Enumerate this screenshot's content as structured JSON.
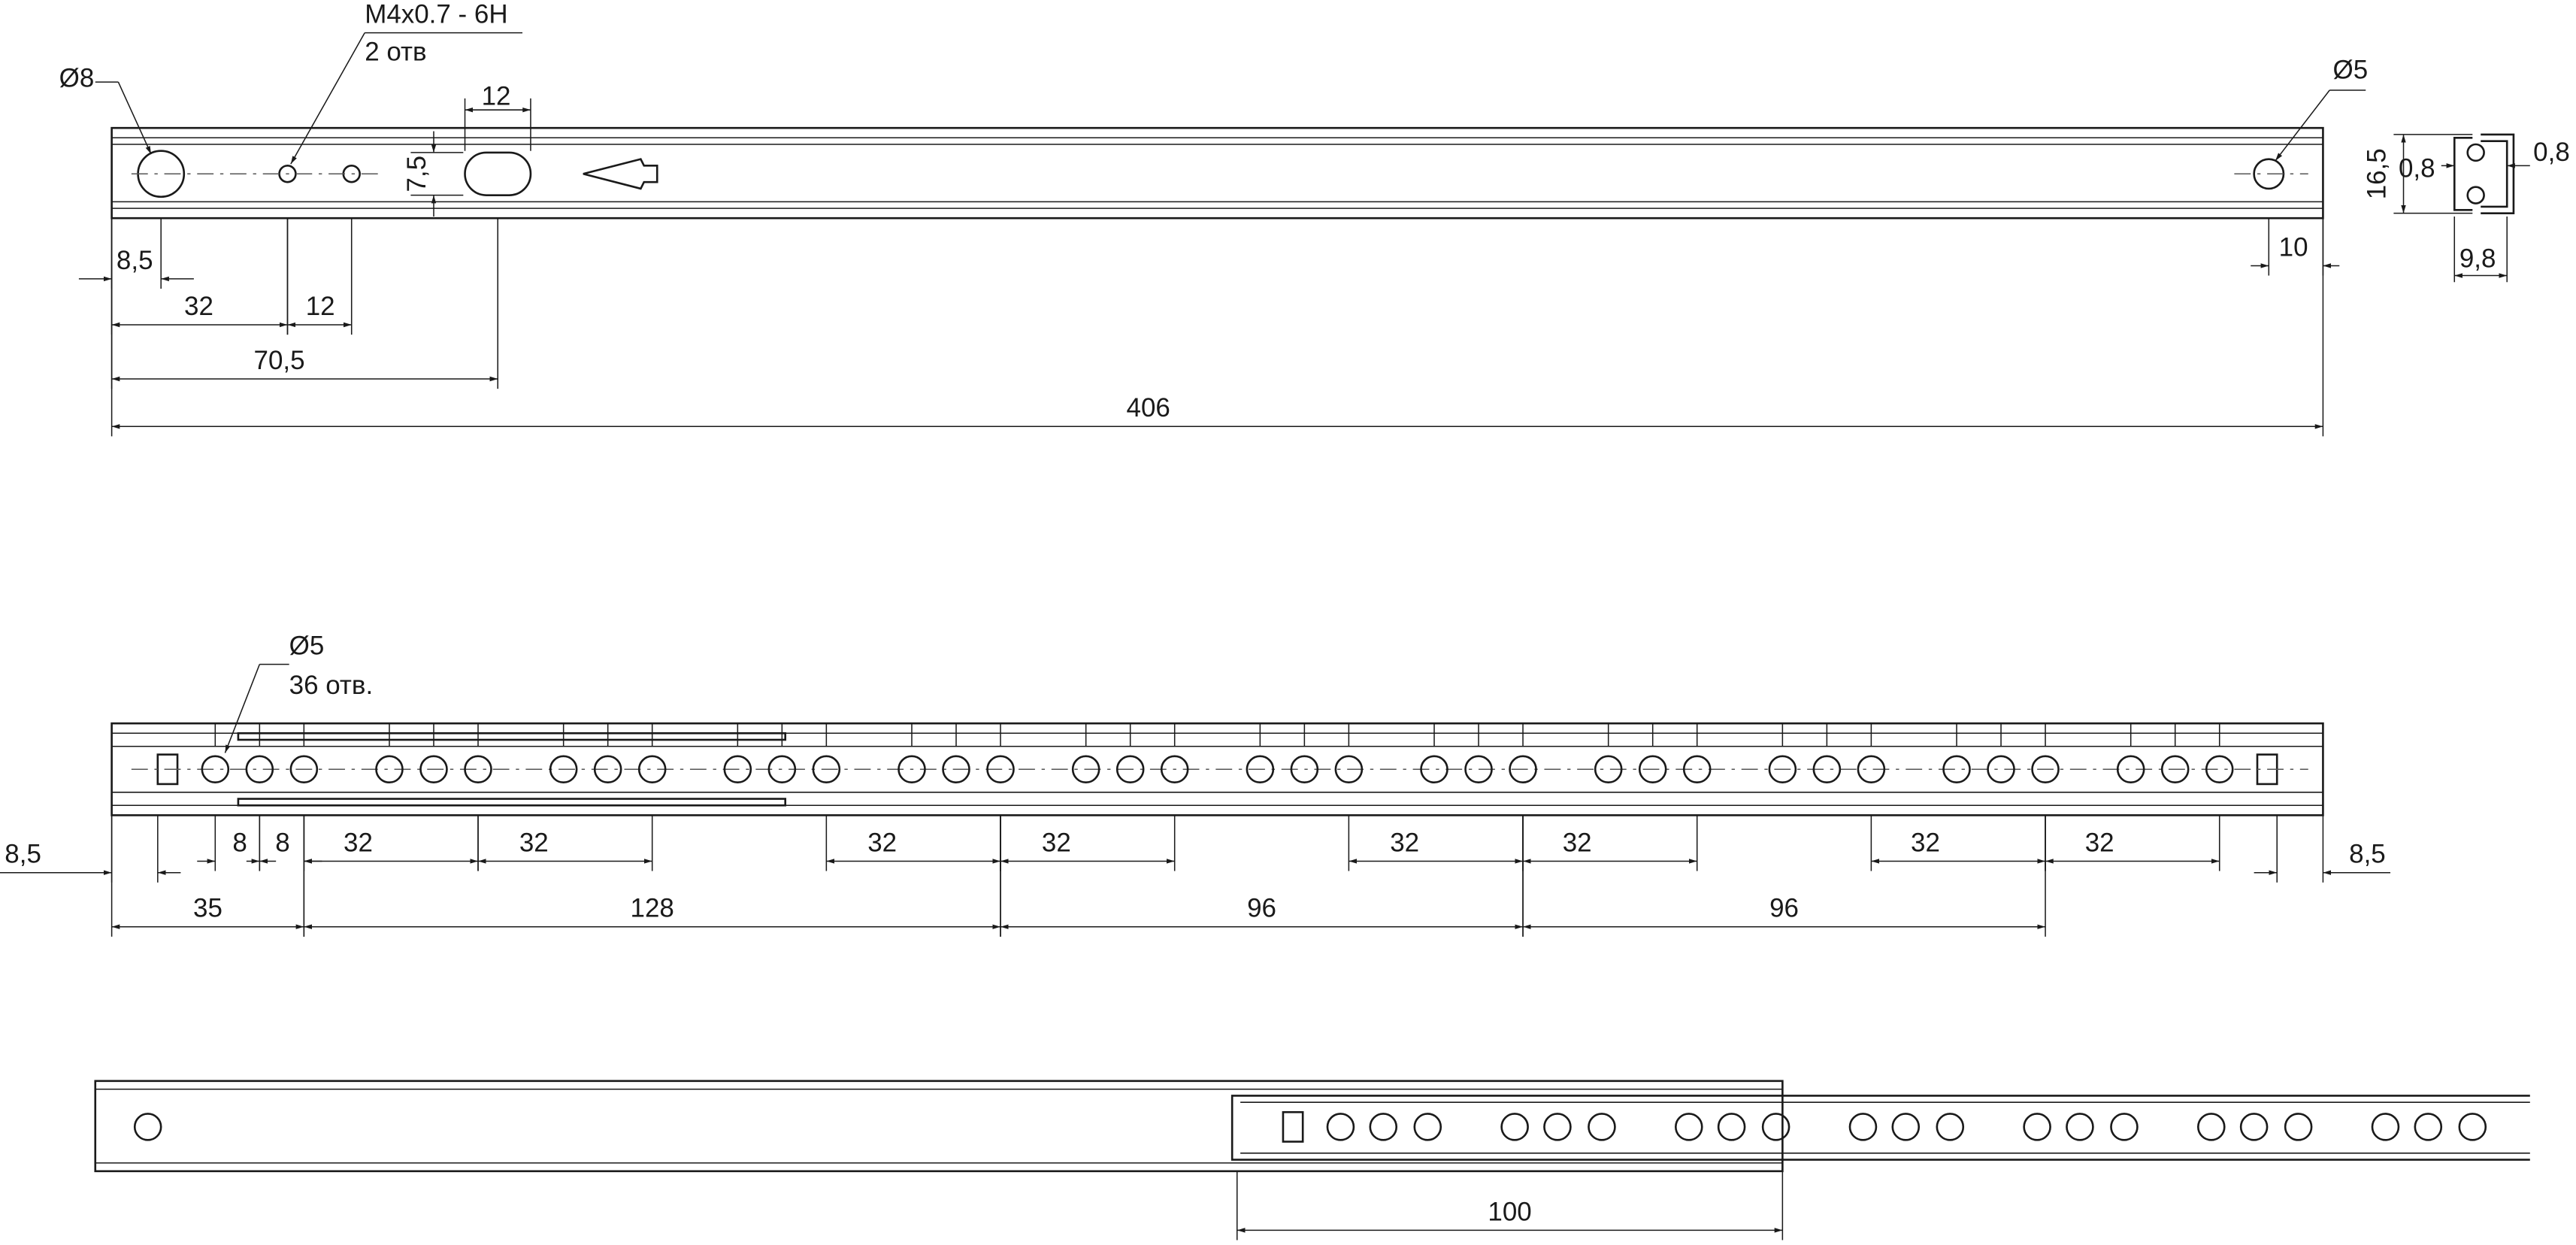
{
  "top_view": {
    "hole_callout": "Ø8",
    "thread_spec": "M4x0.7 - 6H",
    "thread_count": "2 отв",
    "slot_width": "12",
    "slot_height": "7,5",
    "end_hole": "Ø5",
    "dims": [
      "8,5",
      "32",
      "12",
      "70,5",
      "406",
      "10"
    ]
  },
  "profile": {
    "height": "16,5",
    "wall": "0,8",
    "lip": "0,8",
    "width": "9,8"
  },
  "side_view": {
    "hole_callout": "Ø5",
    "hole_count": "36 отв.",
    "dims_row1": [
      "8,5",
      "8",
      "8",
      "32",
      "32",
      "32",
      "32",
      "32",
      "32",
      "32",
      "32",
      "8,5"
    ],
    "dims_row2": [
      "35",
      "128",
      "96",
      "96"
    ]
  },
  "extended_view": {
    "travel": "100"
  }
}
